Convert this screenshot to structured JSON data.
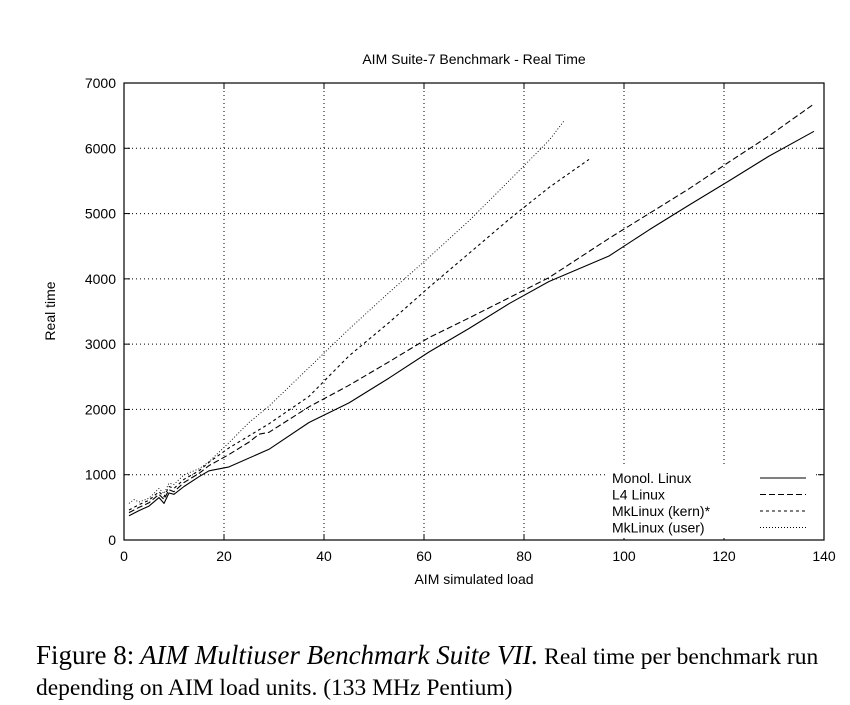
{
  "chart_data": {
    "type": "line",
    "title": "AIM Suite-7 Benchmark - Real Time",
    "xlabel": "AIM simulated load",
    "ylabel": "Real time",
    "xlim": [
      0,
      140
    ],
    "ylim": [
      0,
      7000
    ],
    "xticks": [
      "0",
      "20",
      "40",
      "60",
      "80",
      "100",
      "120",
      "140"
    ],
    "yticks": [
      "0",
      "1000",
      "2000",
      "3000",
      "4000",
      "5000",
      "6000",
      "7000"
    ],
    "grid": true,
    "legend_position": "bottom-right",
    "series": [
      {
        "name": "Monol. Linux",
        "style": "solid",
        "x": [
          1,
          3,
          5,
          7,
          8,
          9,
          10,
          12,
          15,
          17,
          21,
          29,
          37,
          45,
          53,
          61,
          69,
          77,
          85,
          97,
          105,
          113,
          121,
          129,
          138
        ],
        "y": [
          370,
          450,
          520,
          650,
          560,
          720,
          700,
          820,
          970,
          1060,
          1120,
          1390,
          1800,
          2100,
          2480,
          2880,
          3240,
          3620,
          3960,
          4350,
          4750,
          5130,
          5500,
          5880,
          6260
        ]
      },
      {
        "name": "L4 Linux",
        "style": "dashed",
        "x": [
          1,
          3,
          5,
          7,
          8,
          9,
          10,
          12,
          15,
          17,
          21,
          25,
          27,
          29,
          37,
          45,
          53,
          61,
          69,
          77,
          85,
          97,
          105,
          113,
          121,
          129,
          138
        ],
        "y": [
          420,
          500,
          570,
          700,
          620,
          770,
          740,
          880,
          1020,
          1140,
          1310,
          1500,
          1620,
          1650,
          2040,
          2370,
          2730,
          3100,
          3400,
          3710,
          4020,
          4620,
          5000,
          5380,
          5790,
          6190,
          6680
        ]
      },
      {
        "name": "MkLinux (kern)*",
        "style": "dotted",
        "x": [
          1,
          3,
          5,
          7,
          8,
          9,
          10,
          12,
          15,
          17,
          21,
          29,
          37,
          45,
          53,
          61,
          69,
          77,
          85,
          93
        ],
        "y": [
          460,
          540,
          610,
          740,
          660,
          820,
          790,
          930,
          1060,
          1190,
          1410,
          1780,
          2200,
          2820,
          3330,
          3870,
          4390,
          4910,
          5400,
          5830
        ]
      },
      {
        "name": "MkLinux (user)",
        "style": "fine-dotted",
        "x": [
          1,
          2,
          3,
          5,
          7,
          8,
          9,
          10,
          12,
          15,
          17,
          21,
          25,
          29,
          37,
          45,
          53,
          61,
          69,
          77,
          85,
          88
        ],
        "y": [
          560,
          620,
          580,
          640,
          790,
          710,
          870,
          850,
          1000,
          1090,
          1200,
          1490,
          1800,
          2050,
          2640,
          3230,
          3790,
          4330,
          4890,
          5500,
          6120,
          6420
        ]
      }
    ]
  },
  "caption": {
    "label": "Figure 8:",
    "title": "AIM Multiuser Benchmark Suite VII.",
    "text": "Real time per benchmark run depending on AIM load units. (133 MHz Pentium)"
  }
}
